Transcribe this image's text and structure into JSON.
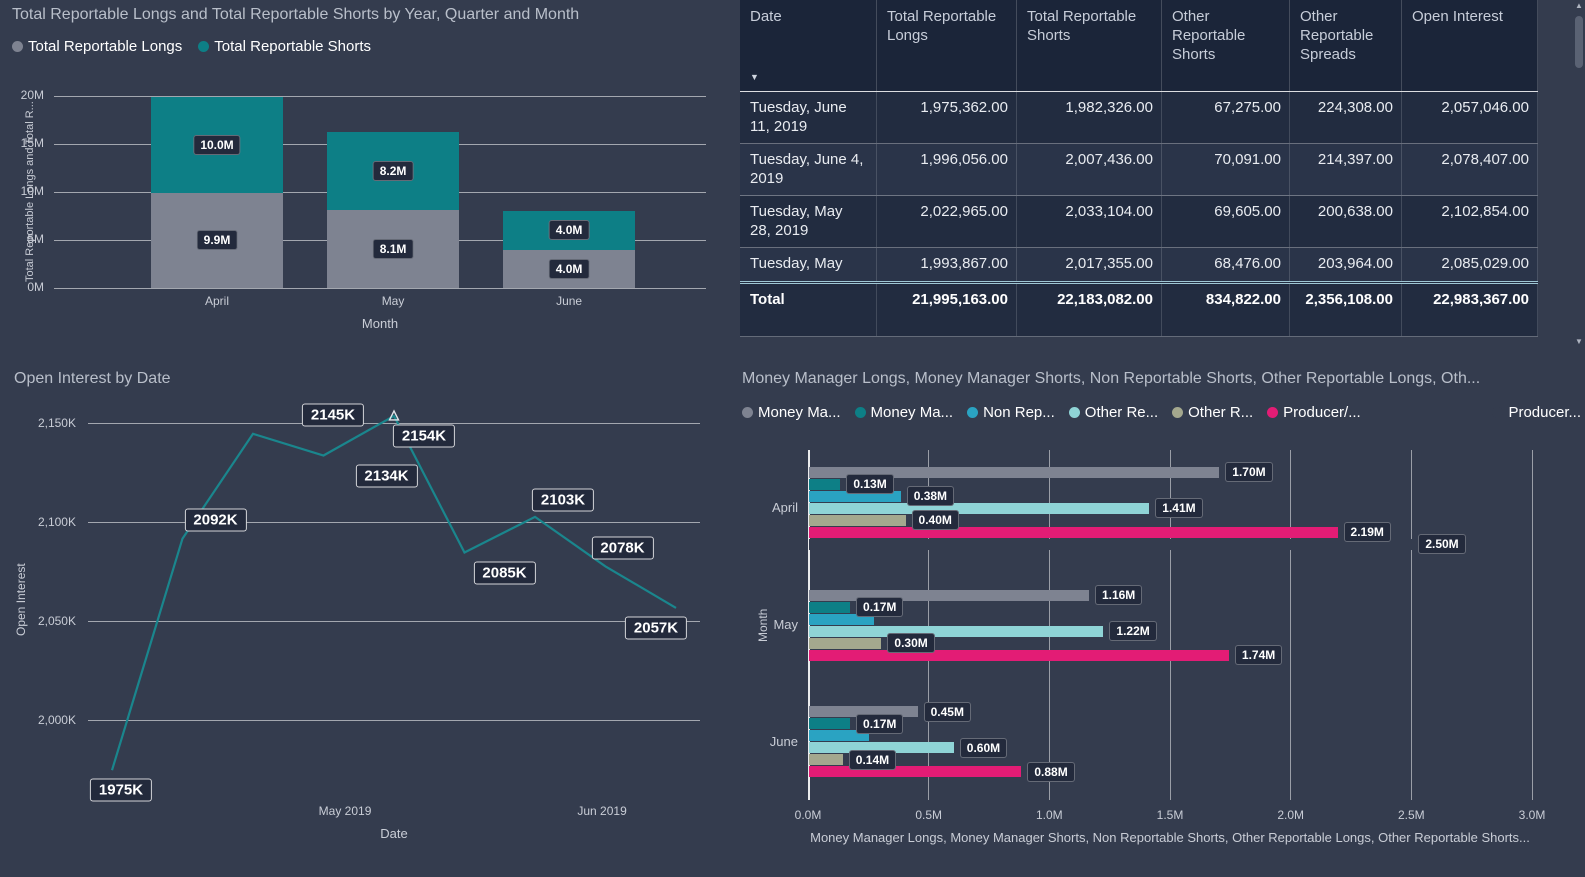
{
  "canvas": {
    "background": "#343c4e"
  },
  "icons": {
    "sort_desc": "▼",
    "scrollbar_up": "▲",
    "scrollbar_down": "▼"
  },
  "chart_data": [
    {
      "id": "stacked-column",
      "type": "bar",
      "stacked": true,
      "title": "Total Reportable Longs and Total Reportable Shorts by Year, Quarter and Month",
      "xlabel": "Month",
      "ylabel": "Total Reportable Longs and Total R...",
      "y_max": 20,
      "y_ticks": [
        {
          "value": 20,
          "label": "20M"
        },
        {
          "value": 15,
          "label": "15M"
        },
        {
          "value": 10,
          "label": "10M"
        },
        {
          "value": 5,
          "label": "5M"
        },
        {
          "value": 0,
          "label": "0M"
        }
      ],
      "categories": [
        "April",
        "May",
        "June"
      ],
      "legend": [
        {
          "label": "Total Reportable Longs",
          "color": "#7e8391"
        },
        {
          "label": "Total Reportable Shorts",
          "color": "#0d7f86"
        }
      ],
      "series": [
        {
          "name": "Total Reportable Longs",
          "color": "#7e8391",
          "values": [
            9.9,
            8.1,
            4.0
          ],
          "labels": [
            "9.9M",
            "8.1M",
            "4.0M"
          ]
        },
        {
          "name": "Total Reportable Shorts",
          "color": "#0d7f86",
          "values": [
            10.0,
            8.2,
            4.0
          ],
          "labels": [
            "10.0M",
            "8.2M",
            "4.0M"
          ]
        }
      ]
    },
    {
      "id": "weekly-table",
      "type": "table",
      "columns": [
        "Date",
        "Total Reportable Longs",
        "Total Reportable Shorts",
        "Other Reportable Shorts",
        "Other Reportable Spreads",
        "Open Interest"
      ],
      "sort": {
        "column": "Date",
        "direction": "desc"
      },
      "rows": [
        [
          "Tuesday, June 11, 2019",
          "1,975,362.00",
          "1,982,326.00",
          "67,275.00",
          "224,308.00",
          "2,057,046.00"
        ],
        [
          "Tuesday, June 4, 2019",
          "1,996,056.00",
          "2,007,436.00",
          "70,091.00",
          "214,397.00",
          "2,078,407.00"
        ],
        [
          "Tuesday, May 28, 2019",
          "2,022,965.00",
          "2,033,104.00",
          "69,605.00",
          "200,638.00",
          "2,102,854.00"
        ],
        [
          "Tuesday, May",
          "1,993,867.00",
          "2,017,355.00",
          "68,476.00",
          "203,964.00",
          "2,085,029.00"
        ]
      ],
      "total_row": [
        "Total",
        "21,995,163.00",
        "22,183,082.00",
        "834,822.00",
        "2,356,108.00",
        "22,983,367.00"
      ]
    },
    {
      "id": "open-interest-line",
      "type": "line",
      "title": "Open Interest by Date",
      "xlabel": "Date",
      "ylabel": "Open  Interest",
      "line_color": "#1a868d",
      "y_range": [
        1965,
        2157
      ],
      "y_ticks": [
        {
          "value": 2150,
          "label": "2,150K"
        },
        {
          "value": 2100,
          "label": "2,100K"
        },
        {
          "value": 2050,
          "label": "2,050K"
        },
        {
          "value": 2000,
          "label": "2,000K"
        }
      ],
      "x_ticks": [
        {
          "label": "May 2019",
          "pos": 0.42
        },
        {
          "label": "Jun 2019",
          "pos": 0.84
        }
      ],
      "points": [
        {
          "value": 1975,
          "label": "1975K"
        },
        {
          "value": 2092,
          "label": "2092K"
        },
        {
          "value": 2145,
          "label": "2145K"
        },
        {
          "value": 2134,
          "label": "2134K"
        },
        {
          "value": 2154,
          "label": "2154K"
        },
        {
          "value": 2085,
          "label": "2085K"
        },
        {
          "value": 2103,
          "label": "2103K"
        },
        {
          "value": 2078,
          "label": "2078K"
        },
        {
          "value": 2057,
          "label": "2057K"
        }
      ]
    },
    {
      "id": "breakdown-bars",
      "type": "bar",
      "orientation": "horizontal",
      "title": "Money Manager Longs, Money Manager Shorts, Non Reportable Shorts, Other Reportable Longs, Oth...",
      "xlabel": "Money Manager Longs, Money Manager Shorts, Non Reportable Shorts, Other Reportable Longs, Other Reportable Shorts...",
      "ylabel": "Month",
      "x_max": 3.0,
      "x_ticks": [
        "0.0M",
        "0.5M",
        "1.0M",
        "1.5M",
        "2.0M",
        "2.5M",
        "3.0M"
      ],
      "legend": [
        {
          "label": "Money Ma...",
          "color": "#7e8391"
        },
        {
          "label": "Money Ma...",
          "color": "#0d7f86"
        },
        {
          "label": "Non Rep...",
          "color": "#2aa3c2"
        },
        {
          "label": "Other Re...",
          "color": "#8fd4d6"
        },
        {
          "label": "Other R...",
          "color": "#a4a88e"
        },
        {
          "label": "Producer/...",
          "color": "#e31c75"
        },
        {
          "label": "Producer...",
          "color": "#343c4e"
        }
      ],
      "groups": [
        {
          "category": "April",
          "bars": [
            {
              "series": "Money Manager Longs",
              "value": 1.7,
              "label": "1.70M",
              "color": "#7e8391"
            },
            {
              "series": "Money Manager Shorts",
              "value": 0.13,
              "label": "0.13M",
              "color": "#0d7f86"
            },
            {
              "series": "Non Reportable Shorts",
              "value": 0.38,
              "label": "0.38M",
              "color": "#2aa3c2"
            },
            {
              "series": "Other Reportable Longs",
              "value": 1.41,
              "label": "1.41M",
              "color": "#8fd4d6"
            },
            {
              "series": "Other Reportable Shorts",
              "value": 0.4,
              "label": "0.40M",
              "color": "#a4a88e"
            },
            {
              "series": "Producer",
              "value": 2.19,
              "label": "2.19M",
              "color": "#e31c75"
            },
            {
              "series": "Producer 2",
              "value": 2.5,
              "label": "2.50M",
              "color": "#343c4e"
            }
          ]
        },
        {
          "category": "May",
          "bars": [
            {
              "series": "Money Manager Longs",
              "value": 1.16,
              "label": "1.16M",
              "color": "#7e8391"
            },
            {
              "series": "Money Manager Shorts",
              "value": 0.17,
              "label": "0.17M",
              "color": "#0d7f86"
            },
            {
              "series": "Non Reportable Shorts",
              "value": 0.27,
              "label": "",
              "color": "#2aa3c2"
            },
            {
              "series": "Other Reportable Longs",
              "value": 1.22,
              "label": "1.22M",
              "color": "#8fd4d6"
            },
            {
              "series": "Other Reportable Shorts",
              "value": 0.3,
              "label": "0.30M",
              "color": "#a4a88e"
            },
            {
              "series": "Producer",
              "value": 1.74,
              "label": "1.74M",
              "color": "#e31c75"
            }
          ]
        },
        {
          "category": "June",
          "bars": [
            {
              "series": "Money Manager Longs",
              "value": 0.45,
              "label": "0.45M",
              "color": "#7e8391"
            },
            {
              "series": "Money Manager Shorts",
              "value": 0.17,
              "label": "0.17M",
              "color": "#0d7f86"
            },
            {
              "series": "Non Reportable Shorts",
              "value": 0.25,
              "label": "",
              "color": "#2aa3c2"
            },
            {
              "series": "Other Reportable Longs",
              "value": 0.6,
              "label": "0.60M",
              "color": "#8fd4d6"
            },
            {
              "series": "Other Reportable Shorts",
              "value": 0.14,
              "label": "0.14M",
              "color": "#a4a88e"
            },
            {
              "series": "Producer",
              "value": 0.88,
              "label": "0.88M",
              "color": "#e31c75"
            }
          ]
        }
      ]
    }
  ]
}
